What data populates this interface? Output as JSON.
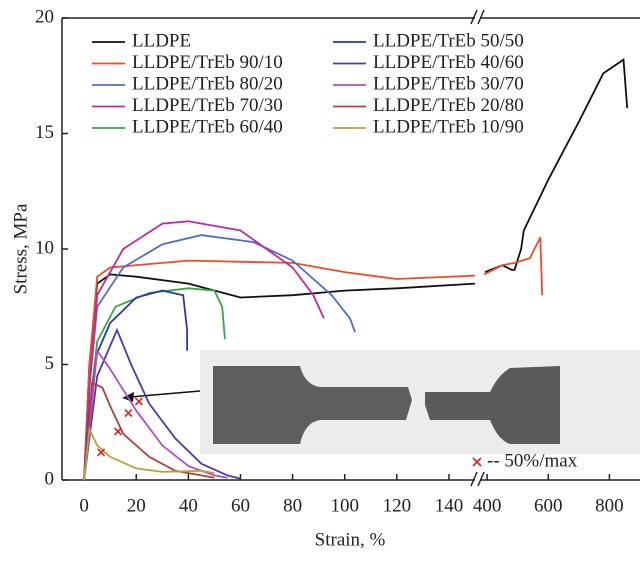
{
  "chart_data": {
    "type": "line",
    "ylabel": "Stress, MPa",
    "xlabel": "Strain, %",
    "ylim": [
      0,
      20
    ],
    "yticks": [
      0,
      5,
      10,
      15,
      20
    ],
    "x_segments": [
      {
        "xlim": [
          -8.5,
          150
        ],
        "xticks": [
          0,
          20,
          40,
          60,
          80,
          100,
          120,
          140
        ]
      },
      {
        "xlim": [
          380,
          900
        ],
        "xticks": [
          400,
          600,
          800
        ]
      }
    ],
    "series": [
      {
        "name": "LLDPE",
        "color": "#111111",
        "x": [
          0,
          2,
          5,
          10,
          20,
          40,
          60,
          80,
          100,
          120,
          150,
          null,
          393,
          450,
          480,
          490,
          511,
          520,
          600,
          700,
          780,
          846,
          858
        ],
        "values": [
          0,
          5,
          8.5,
          8.9,
          8.8,
          8.5,
          7.9,
          8.0,
          8.2,
          8.3,
          8.5,
          null,
          9.0,
          9.3,
          9.1,
          9.1,
          10.0,
          10.8,
          13.0,
          15.5,
          17.6,
          18.2,
          16.1
        ]
      },
      {
        "name": "LLDPE/TrEb 90/10",
        "color": "#f04a2a",
        "x": [
          0,
          2,
          5,
          10,
          40,
          80,
          100,
          120,
          150,
          null,
          390,
          450,
          490,
          540,
          574,
          580
        ],
        "values": [
          0,
          5,
          8.8,
          9.2,
          9.5,
          9.4,
          9.0,
          8.7,
          8.85,
          null,
          8.9,
          9.3,
          9.4,
          9.6,
          10.5,
          8.0
        ]
      },
      {
        "name": "LLDPE/TrEb 80/20",
        "color": "#4a6fc4",
        "x": [
          0,
          2,
          5,
          15,
          30,
          45,
          65,
          80,
          95,
          102,
          104
        ],
        "values": [
          0,
          4,
          7.5,
          9.2,
          10.2,
          10.6,
          10.3,
          9.5,
          8.0,
          7.0,
          6.4
        ]
      },
      {
        "name": "LLDPE/TrEb 70/30",
        "color": "#c02a9a",
        "x": [
          0,
          2,
          5,
          15,
          30,
          40,
          60,
          80,
          88,
          92
        ],
        "values": [
          0,
          4,
          8,
          10,
          11.1,
          11.2,
          10.8,
          9.2,
          8.0,
          7.0
        ]
      },
      {
        "name": "LLDPE/TrEb 60/40",
        "color": "#3aa64a",
        "x": [
          0,
          2,
          5,
          12,
          25,
          40,
          50,
          53,
          54
        ],
        "values": [
          0,
          3,
          6,
          7.5,
          8.1,
          8.3,
          8.2,
          7.5,
          6.1
        ]
      },
      {
        "name": "LLDPE/TrEb 50/50",
        "color": "#2a3aa0",
        "x": [
          0,
          2,
          5,
          10,
          20,
          30,
          38,
          39.5,
          39.5
        ],
        "values": [
          0,
          3,
          5.5,
          6.8,
          7.9,
          8.2,
          8.0,
          6.5,
          5.6
        ]
      },
      {
        "name": "LLDPE/TrEb 40/60",
        "color": "#4a3ab0",
        "x": [
          0,
          5,
          12.6,
          18,
          25,
          35,
          45,
          55,
          60
        ],
        "values": [
          0,
          4.5,
          6.5,
          5.0,
          3.3,
          1.8,
          0.7,
          0.2,
          0.05
        ]
      },
      {
        "name": "LLDPE/TrEb 30/70",
        "color": "#b050c0",
        "x": [
          0,
          5,
          10,
          20,
          30,
          40,
          50,
          55
        ],
        "values": [
          0,
          5.6,
          4.8,
          3.0,
          1.5,
          0.6,
          0.2,
          0.1
        ]
      },
      {
        "name": "LLDPE/TrEb 20/80",
        "color": "#b04040",
        "x": [
          0,
          3,
          7,
          10,
          15,
          25,
          35,
          45,
          50
        ],
        "values": [
          0,
          4.2,
          4.0,
          3.2,
          2.0,
          1.0,
          0.4,
          0.2,
          0.1
        ]
      },
      {
        "name": "LLDPE/TrEb 10/90",
        "color": "#b8a040",
        "x": [
          0,
          2,
          5,
          10,
          20,
          30,
          45,
          50
        ],
        "values": [
          0,
          2.2,
          1.5,
          1.0,
          0.5,
          0.35,
          0.4,
          0.3
        ]
      }
    ],
    "markers": {
      "name": "-- 50%/max",
      "color": "#e02020",
      "x": [
        6.5,
        13,
        17,
        21
      ],
      "values": [
        1.2,
        2.1,
        2.9,
        3.4
      ]
    }
  }
}
